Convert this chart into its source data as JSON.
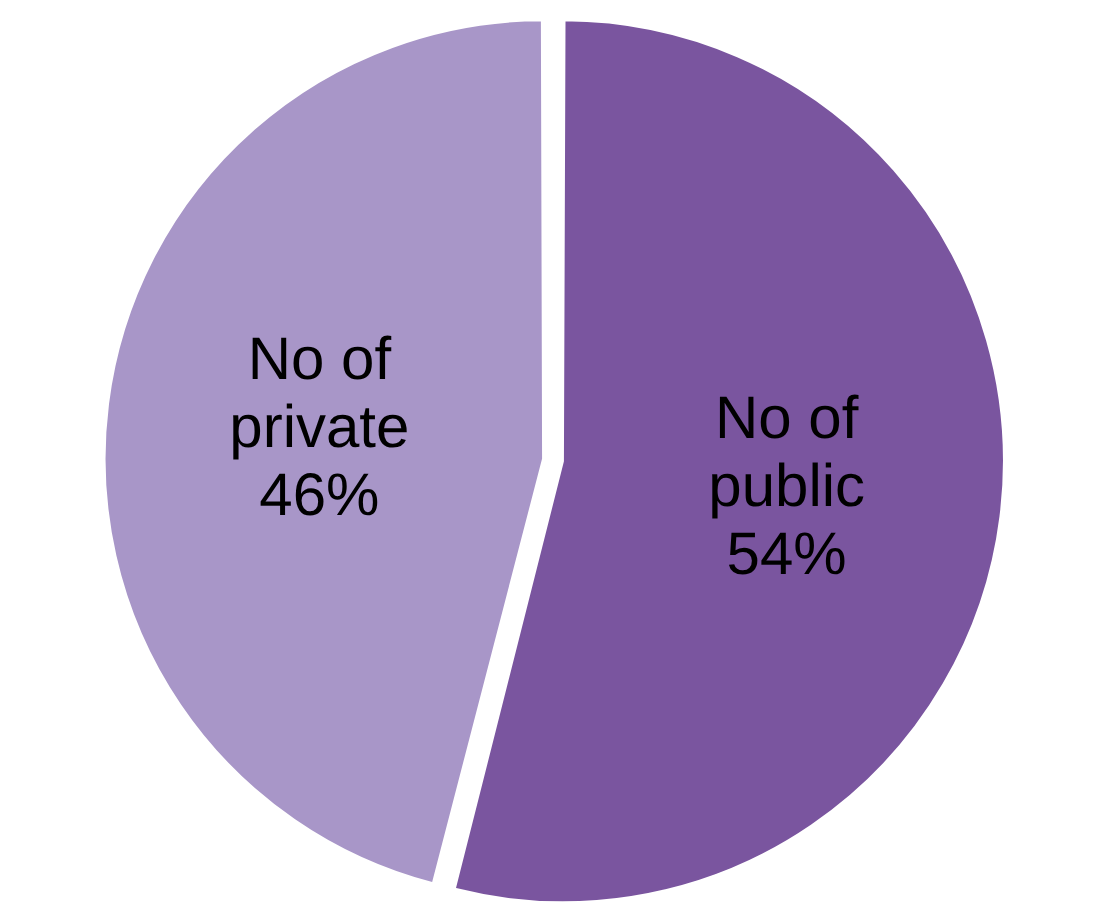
{
  "chart_data": {
    "type": "pie",
    "categories": [
      "No of public",
      "No of private"
    ],
    "values": [
      54,
      46
    ],
    "colors": [
      "#7a559f",
      "#a896c8"
    ],
    "value_labels": [
      "54%",
      "46%"
    ],
    "legend": false
  }
}
